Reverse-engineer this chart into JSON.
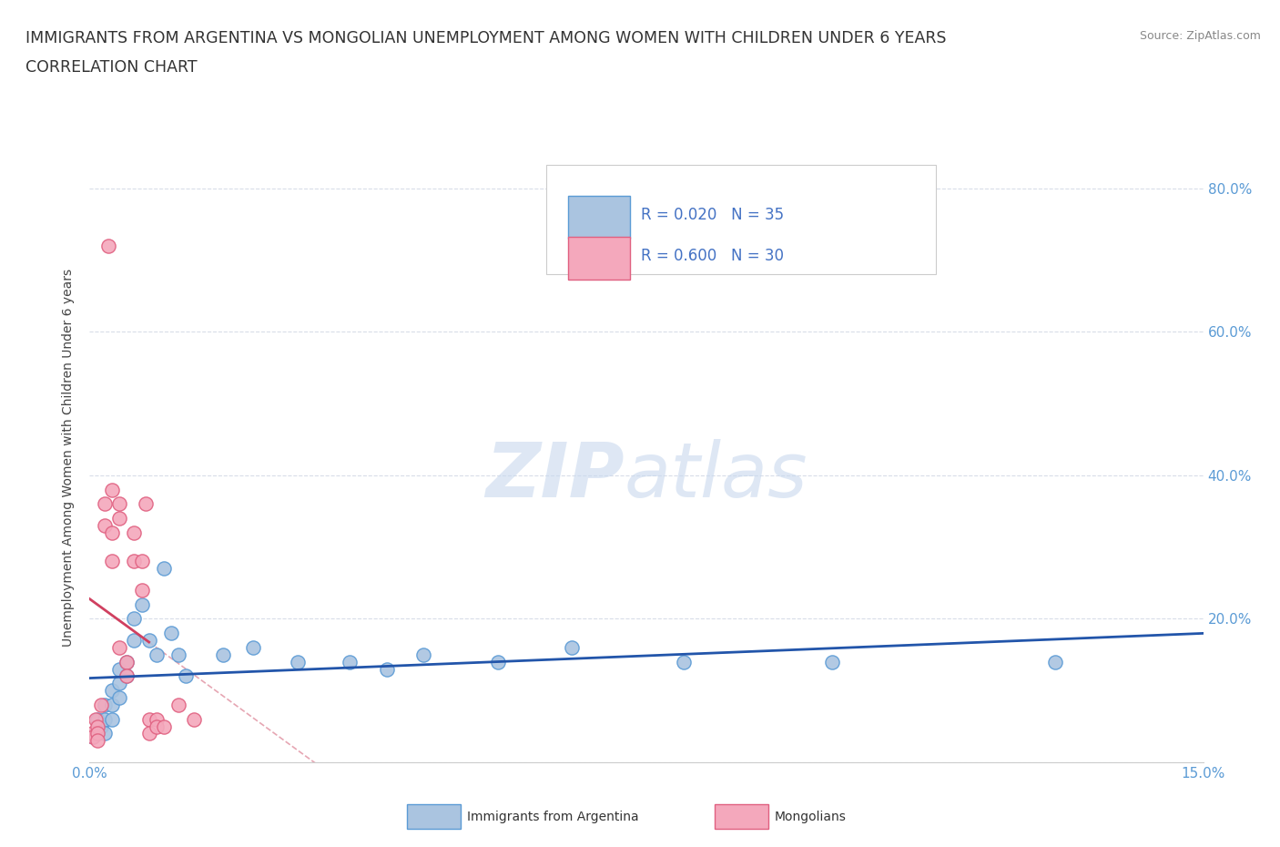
{
  "title": "IMMIGRANTS FROM ARGENTINA VS MONGOLIAN UNEMPLOYMENT AMONG WOMEN WITH CHILDREN UNDER 6 YEARS",
  "subtitle": "CORRELATION CHART",
  "source": "Source: ZipAtlas.com",
  "ylabel": "Unemployment Among Women with Children Under 6 years",
  "xlim": [
    0,
    0.15
  ],
  "ylim": [
    0,
    0.85
  ],
  "argentina_color": "#aac4e0",
  "mongolia_color": "#f4a8bc",
  "argentina_edge": "#5b9bd5",
  "mongolia_edge": "#e06080",
  "regression_argentina_color": "#2255aa",
  "regression_mongolia_color": "#d04060",
  "dashed_line_color": "#e090a0",
  "legend_text_color": "#4472c4",
  "tick_color": "#5b9bd5",
  "grid_color": "#d8dde8",
  "argentina_x": [
    0.0005,
    0.001,
    0.001,
    0.0015,
    0.002,
    0.002,
    0.002,
    0.003,
    0.003,
    0.003,
    0.004,
    0.004,
    0.004,
    0.005,
    0.005,
    0.006,
    0.006,
    0.007,
    0.008,
    0.009,
    0.01,
    0.011,
    0.012,
    0.013,
    0.018,
    0.022,
    0.028,
    0.035,
    0.04,
    0.045,
    0.055,
    0.065,
    0.08,
    0.1,
    0.13
  ],
  "argentina_y": [
    0.035,
    0.06,
    0.04,
    0.05,
    0.08,
    0.06,
    0.04,
    0.1,
    0.08,
    0.06,
    0.13,
    0.11,
    0.09,
    0.14,
    0.12,
    0.2,
    0.17,
    0.22,
    0.17,
    0.15,
    0.27,
    0.18,
    0.15,
    0.12,
    0.15,
    0.16,
    0.14,
    0.14,
    0.13,
    0.15,
    0.14,
    0.16,
    0.14,
    0.14,
    0.14
  ],
  "mongolia_x": [
    0.0003,
    0.0005,
    0.0008,
    0.001,
    0.001,
    0.001,
    0.0015,
    0.002,
    0.002,
    0.0025,
    0.003,
    0.003,
    0.003,
    0.004,
    0.004,
    0.004,
    0.005,
    0.005,
    0.006,
    0.006,
    0.007,
    0.007,
    0.0075,
    0.008,
    0.008,
    0.009,
    0.009,
    0.01,
    0.012,
    0.014
  ],
  "mongolia_y": [
    0.04,
    0.035,
    0.06,
    0.05,
    0.04,
    0.03,
    0.08,
    0.36,
    0.33,
    0.72,
    0.38,
    0.32,
    0.28,
    0.36,
    0.34,
    0.16,
    0.14,
    0.12,
    0.32,
    0.28,
    0.28,
    0.24,
    0.36,
    0.06,
    0.04,
    0.06,
    0.05,
    0.05,
    0.08,
    0.06
  ],
  "watermark_zip_color": "#c8d8ee",
  "watermark_atlas_color": "#c8d8ee"
}
